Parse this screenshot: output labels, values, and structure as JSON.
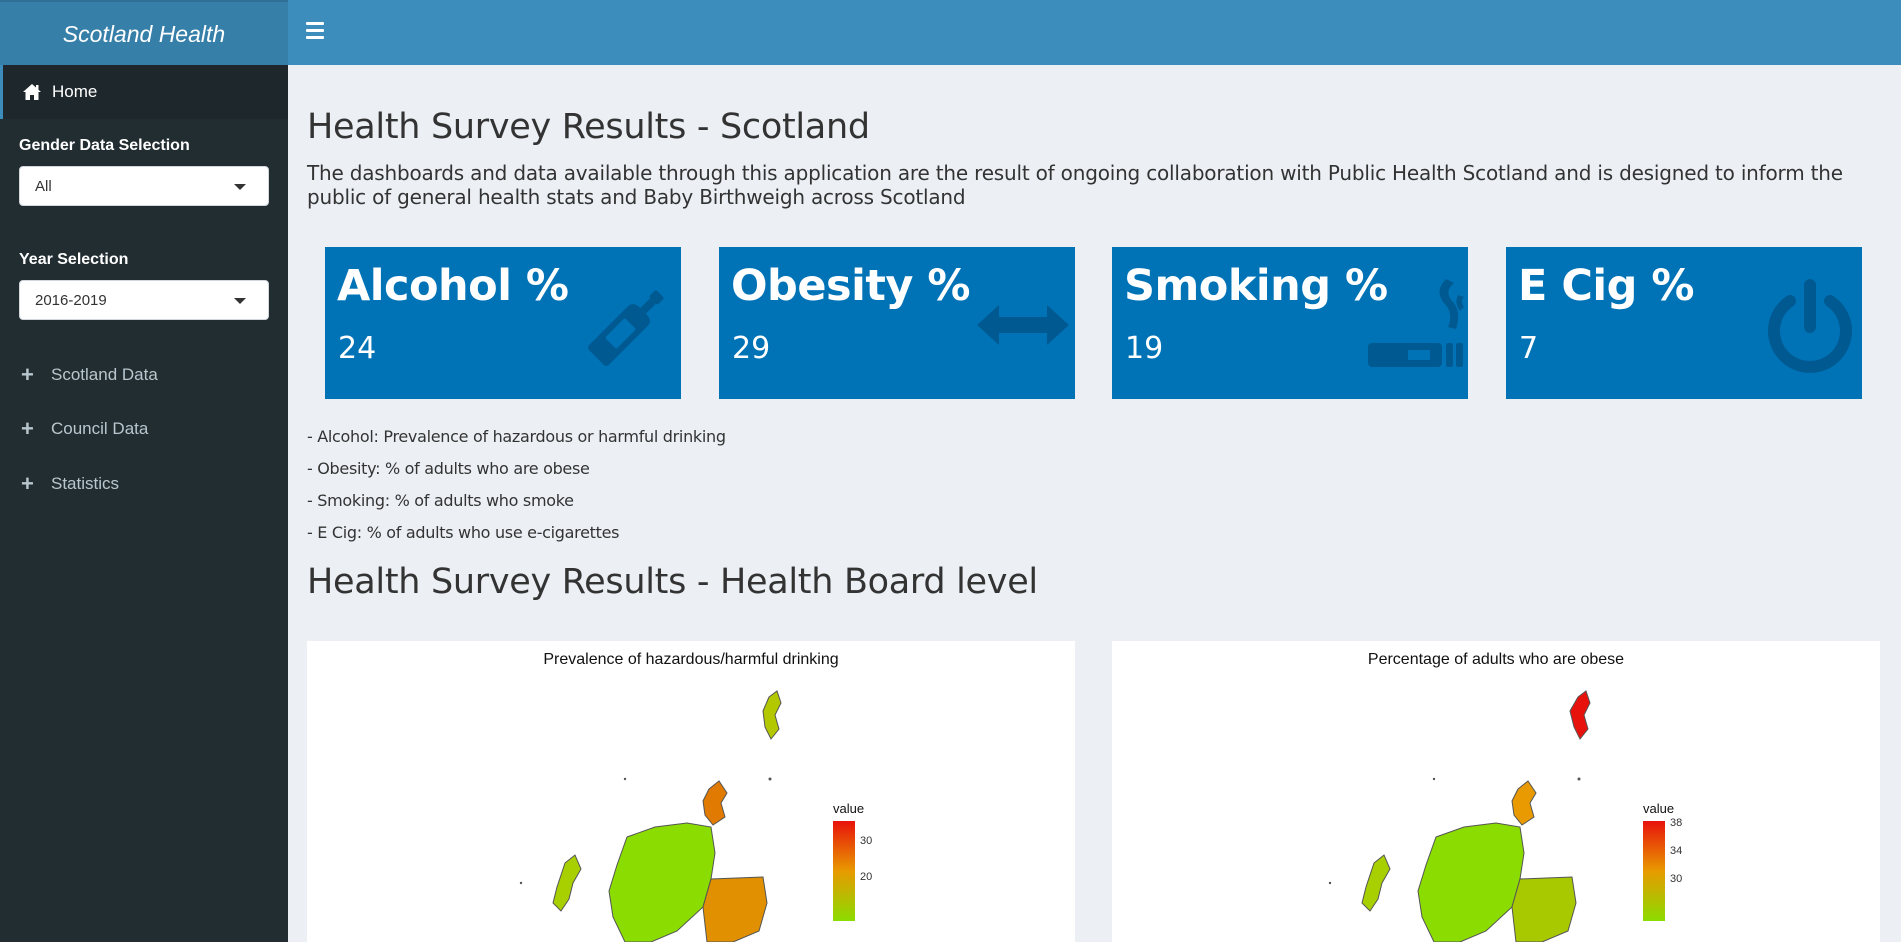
{
  "header": {
    "app_title": "Scotland Health",
    "menu_icon": "hamburger-icon"
  },
  "sidebar": {
    "home_label": "Home",
    "home_icon": "home-icon",
    "gender": {
      "label": "Gender Data Selection",
      "selected": "All"
    },
    "year": {
      "label": "Year Selection",
      "selected": "2016-2019"
    },
    "items": [
      {
        "label": "Scotland Data",
        "icon": "plus-icon"
      },
      {
        "label": "Council Data",
        "icon": "plus-icon"
      },
      {
        "label": "Statistics",
        "icon": "plus-icon"
      }
    ]
  },
  "main": {
    "title": "Health Survey Results - Scotland",
    "intro": "The dashboards and data available through this application are the result of ongoing collaboration with Public Health Scotland and is designed to inform the public of general health stats and Baby Birthweigh across Scotland",
    "value_boxes": [
      {
        "title": "Alcohol %",
        "value": "24",
        "icon": "wine-bottle-icon",
        "color": "#0073b7"
      },
      {
        "title": "Obesity %",
        "value": "29",
        "icon": "arrows-horizontal-icon",
        "color": "#0073b7"
      },
      {
        "title": "Smoking %",
        "value": "19",
        "icon": "smoking-icon",
        "color": "#0073b7"
      },
      {
        "title": "E Cig %",
        "value": "7",
        "icon": "power-off-icon",
        "color": "#0073b7"
      }
    ],
    "notes": [
      "- Alcohol: Prevalence of hazardous or harmful drinking",
      "- Obesity: % of adults who are obese",
      "- Smoking: % of adults who smoke",
      "- E Cig: % of adults who use e-cigarettes"
    ],
    "subtitle": "Health Survey Results - Health Board level",
    "maps": [
      {
        "title": "Prevalence of hazardous/harmful drinking",
        "legend_title": "value",
        "legend_ticks": [
          "30",
          "20"
        ],
        "colors": {
          "high": "#e8120c",
          "mid": "#e89a00",
          "low": "#8bdc00"
        }
      },
      {
        "title": "Percentage of adults who are obese",
        "legend_title": "value",
        "legend_ticks": [
          "38",
          "34",
          "30"
        ],
        "colors": {
          "high": "#e8120c",
          "mid": "#e89a00",
          "low": "#8bdc00"
        }
      }
    ]
  }
}
